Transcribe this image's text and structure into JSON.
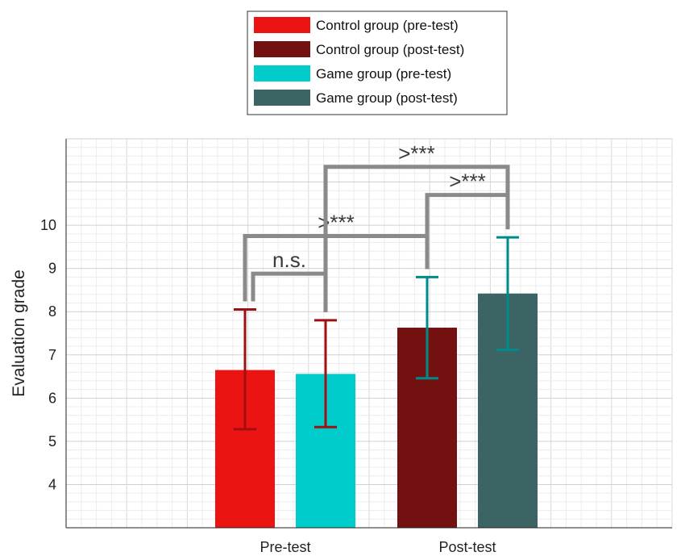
{
  "chart_data": {
    "type": "bar",
    "ylabel": "Evaluation grade",
    "xlabel": "",
    "ylim": [
      3,
      12
    ],
    "yticks": [
      4,
      5,
      6,
      7,
      8,
      9,
      10
    ],
    "grid": true,
    "legend_position": "top-center",
    "categories": [
      "Pre-test",
      "Post-test"
    ],
    "series": [
      {
        "name": "Control group (pre-test)",
        "color": "#ec1313",
        "err_color": "#a01010",
        "category": 0,
        "slot": 0,
        "value": 6.65,
        "err_low": 5.28,
        "err_high": 8.05
      },
      {
        "name": "Game group (pre-test)",
        "color": "#00cccc",
        "err_color": "#a01010",
        "category": 0,
        "slot": 1,
        "value": 6.56,
        "err_low": 5.33,
        "err_high": 7.8
      },
      {
        "name": "Control group (post-test)",
        "color": "#731010",
        "err_color": "#008b8b",
        "category": 1,
        "slot": 0,
        "value": 7.63,
        "err_low": 6.46,
        "err_high": 8.8
      },
      {
        "name": "Game group (post-test)",
        "color": "#3d6464",
        "err_color": "#008b8b",
        "category": 1,
        "slot": 1,
        "value": 8.42,
        "err_low": 7.12,
        "err_high": 9.72
      }
    ],
    "annotations": [
      {
        "text": "n.s.",
        "from": 0,
        "to": 1,
        "y": 8.88
      },
      {
        "text": ">***",
        "from": 0,
        "to": 2,
        "y": 9.75
      },
      {
        "text": ">***",
        "from": 2,
        "to": 3,
        "y": 10.7
      },
      {
        "text": ">***",
        "from": 1,
        "to": 3,
        "y": 11.35
      }
    ]
  },
  "legend": {
    "items": [
      {
        "label": "Control group (pre-test)",
        "color": "#ec1313"
      },
      {
        "label": "Control group (post-test)",
        "color": "#731010"
      },
      {
        "label": "Game group (pre-test)",
        "color": "#00cccc"
      },
      {
        "label": "Game group (post-test)",
        "color": "#3d6464"
      }
    ]
  }
}
